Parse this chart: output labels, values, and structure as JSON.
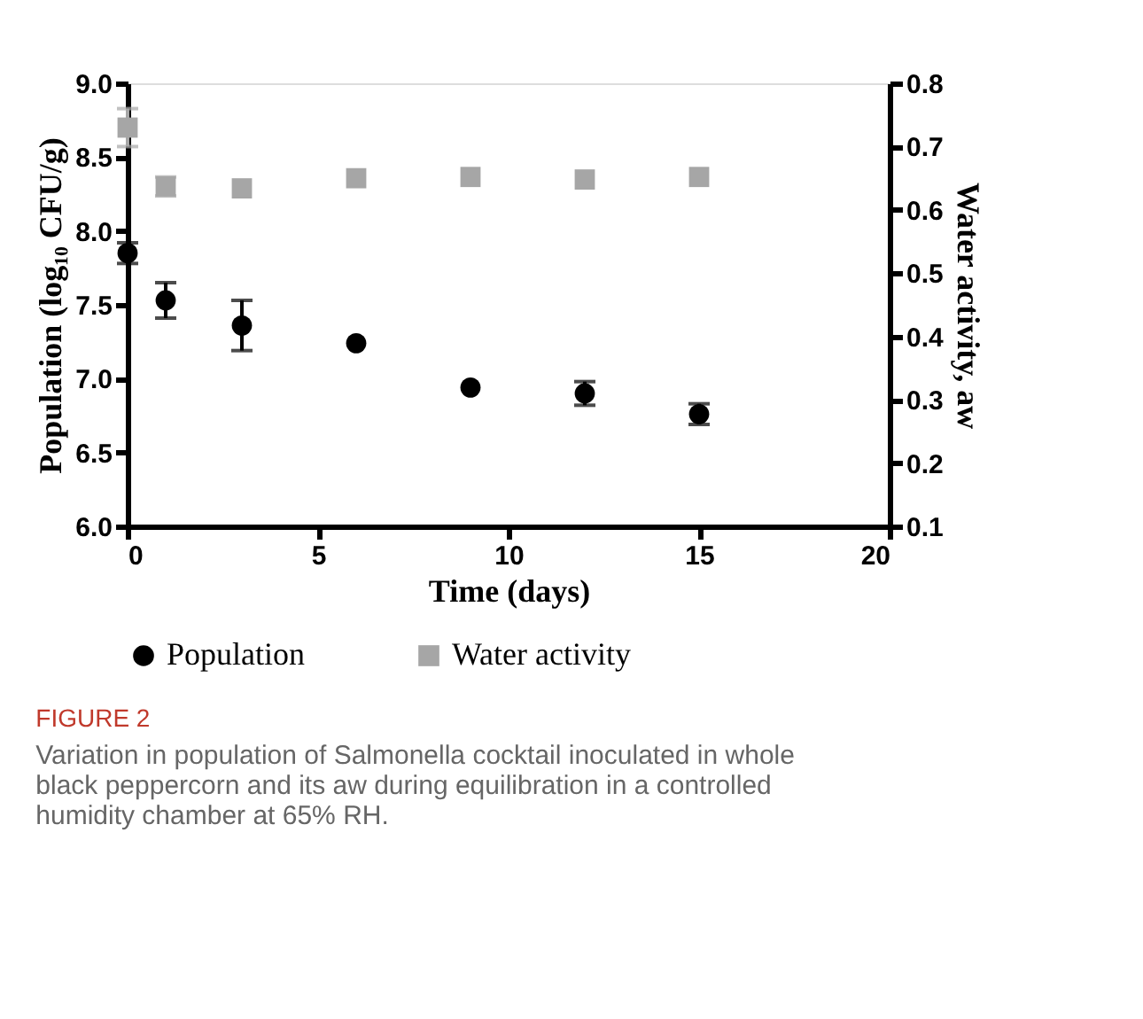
{
  "chart_data": {
    "type": "scatter",
    "title": "FIGURE 2",
    "annotations": [
      "Variation in population of Salmonella cocktail inoculated in whole black peppercorn and its aw during equilibration in a controlled humidity chamber at 65% RH."
    ],
    "xlabel": "Time (days)",
    "ylabel": "Population (log₁₀ CFU/g)",
    "y2label": "Water activity, aw",
    "x": [
      0,
      1,
      3,
      6,
      9,
      12,
      15
    ],
    "series": [
      {
        "name": "Population",
        "color": "#000000",
        "marker": "circle",
        "values": [
          7.85,
          7.53,
          7.36,
          7.24,
          6.94,
          6.9,
          6.76
        ],
        "errors": [
          0.07,
          0.12,
          0.17,
          null,
          null,
          0.08,
          0.07
        ]
      },
      {
        "name": "Water activity",
        "color": "#a6a6a6",
        "marker": "square",
        "axis": "y2",
        "values": [
          0.73,
          0.637,
          0.634,
          0.65,
          0.652,
          0.648,
          0.652
        ],
        "errors": [
          0.03,
          0.015,
          null,
          null,
          null,
          null,
          null
        ]
      }
    ],
    "xlim": [
      0,
      20
    ],
    "xticks": [
      0,
      5,
      10,
      15,
      20
    ],
    "ylim": [
      6.0,
      9.0
    ],
    "yticks": [
      {
        "value": 6.0,
        "label": "6.0"
      },
      {
        "value": 6.5,
        "label": "6.5"
      },
      {
        "value": 7.0,
        "label": "7.0"
      },
      {
        "value": 7.5,
        "label": "7.5"
      },
      {
        "value": 8.0,
        "label": "8.0"
      },
      {
        "value": 8.5,
        "label": "8.5"
      },
      {
        "value": 9.0,
        "label": "9.0"
      }
    ],
    "y2lim": [
      0.1,
      0.8
    ],
    "y2ticks": [
      0.1,
      0.2,
      0.3,
      0.4,
      0.5,
      0.6,
      0.7,
      0.8
    ],
    "grid": false,
    "legend": "bottom"
  }
}
